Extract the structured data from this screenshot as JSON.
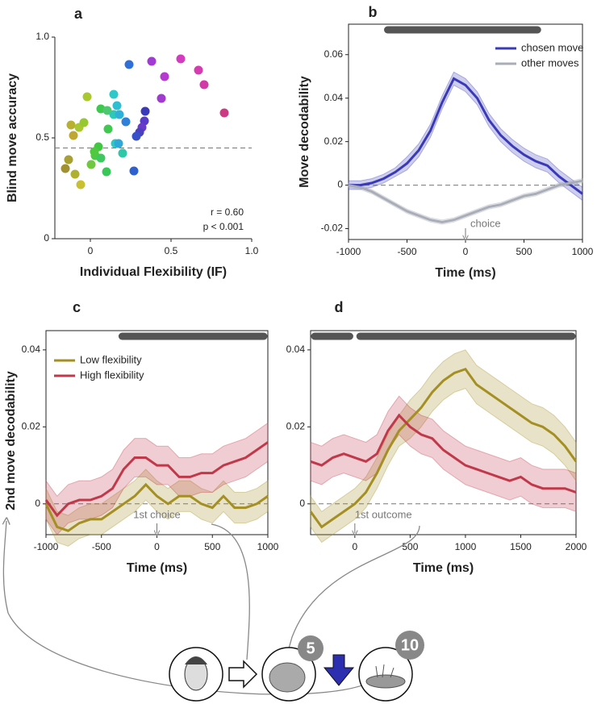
{
  "chart_data": [
    {
      "type": "scatter",
      "panel": "a",
      "x_label": "Individual Flexibility (IF)",
      "y_label": "Blind move accuracy",
      "xlim": [
        -0.22,
        1.0
      ],
      "ylim": [
        0,
        1.0
      ],
      "xticks": [
        0,
        0.5,
        {
          "value": 1.0,
          "label": "1.0"
        }
      ],
      "yticks": [
        0,
        0.5,
        {
          "value": 1.0,
          "label": "1.0"
        }
      ],
      "reference_line": 0.45,
      "annotations": [
        "r = 0.60",
        "p < 0.001"
      ],
      "x": [
        0.24,
        0.38,
        0.56,
        0.67,
        0.46,
        0.705,
        0.44,
        0.83,
        -0.02,
        0.145,
        0.065,
        0.105,
        0.165,
        0.145,
        0.18,
        0.22,
        0.34,
        0.335,
        0.32,
        0.305,
        0.285,
        -0.12,
        -0.07,
        -0.04,
        -0.105,
        0.11,
        0.155,
        0.175,
        0.05,
        0.025,
        0.03,
        0.065,
        0.005,
        -0.135,
        -0.155,
        -0.095,
        -0.06,
        0.1,
        0.27,
        0.2
      ],
      "values": [
        0.864,
        0.88,
        0.892,
        0.836,
        0.804,
        0.764,
        0.696,
        0.624,
        0.704,
        0.716,
        0.644,
        0.636,
        0.66,
        0.616,
        0.616,
        0.58,
        0.632,
        0.584,
        0.552,
        0.528,
        0.508,
        0.564,
        0.552,
        0.576,
        0.512,
        0.544,
        0.472,
        0.472,
        0.456,
        0.432,
        0.412,
        0.4,
        0.368,
        0.392,
        0.348,
        0.32,
        0.268,
        0.332,
        0.336,
        0.424
      ],
      "colors": [
        "#2e6fd8",
        "#a43ad6",
        "#d43cc0",
        "#d43cb0",
        "#b43ad0",
        "#d23aa6",
        "#a03ad0",
        "#cc3a86",
        "#a8c82e",
        "#2ec8c8",
        "#3ec84e",
        "#4ec86e",
        "#2ec0d0",
        "#2ec8b8",
        "#2eb0d8",
        "#2e80d8",
        "#3a3ab8",
        "#5a3ac8",
        "#6a3ac8",
        "#4a40c0",
        "#3a50c8",
        "#b8b030",
        "#a8c830",
        "#98c830",
        "#c0a830",
        "#40c850",
        "#2ec8c0",
        "#2ea8d8",
        "#40c840",
        "#50c840",
        "#50c840",
        "#40c860",
        "#70c840",
        "#a8a030",
        "#a09030",
        "#b0b030",
        "#c8c030",
        "#38c858",
        "#2e60d0",
        "#2ec8a8"
      ]
    },
    {
      "type": "line",
      "panel": "b",
      "x_label": "Time (ms)",
      "y_label": "Move decodability",
      "xlim": [
        -1000,
        1000
      ],
      "ylim": [
        -0.025,
        0.074
      ],
      "xticks": [
        -1000,
        -500,
        0,
        500,
        1000
      ],
      "yticks": [
        -0.02,
        0,
        0.02,
        0.04,
        0.06
      ],
      "reference_line": 0,
      "significance": [
        [
          -700,
          650
        ]
      ],
      "legend": "upper right",
      "annotation": {
        "text": "choice",
        "x": 0
      },
      "x": [
        -1000,
        -900,
        -800,
        -700,
        -600,
        -500,
        -400,
        -300,
        -200,
        -100,
        0,
        100,
        200,
        300,
        400,
        500,
        600,
        700,
        800,
        900,
        1000
      ],
      "series": [
        {
          "name": "chosen move",
          "color": "#3a3ab8",
          "values": [
            0,
            0,
            0.001,
            0.003,
            0.006,
            0.01,
            0.016,
            0.025,
            0.038,
            0.049,
            0.046,
            0.04,
            0.03,
            0.023,
            0.018,
            0.014,
            0.011,
            0.009,
            0.004,
            0,
            -0.004
          ],
          "error": [
            0.002,
            0.002,
            0.002,
            0.002,
            0.002,
            0.003,
            0.003,
            0.003,
            0.003,
            0.003,
            0.003,
            0.003,
            0.003,
            0.003,
            0.003,
            0.003,
            0.003,
            0.003,
            0.003,
            0.003,
            0.003
          ]
        },
        {
          "name": "other moves",
          "color": "#a9adb8",
          "values": [
            0,
            -0.001,
            -0.003,
            -0.006,
            -0.009,
            -0.012,
            -0.014,
            -0.016,
            -0.017,
            -0.016,
            -0.014,
            -0.012,
            -0.01,
            -0.009,
            -0.007,
            -0.005,
            -0.004,
            -0.002,
            0,
            0.001,
            0.002
          ],
          "error": [
            0.001,
            0.001,
            0.001,
            0.001,
            0.001,
            0.001,
            0.001,
            0.001,
            0.001,
            0.001,
            0.001,
            0.001,
            0.001,
            0.001,
            0.001,
            0.001,
            0.001,
            0.001,
            0.001,
            0.001,
            0.001
          ]
        }
      ]
    },
    {
      "type": "line",
      "panel": "c",
      "x_label": "Time (ms)",
      "y_label": "2nd move decodability",
      "xlim": [
        -1000,
        1000
      ],
      "ylim": [
        -0.008,
        0.045
      ],
      "xticks": [
        -1000,
        -500,
        0,
        500,
        1000
      ],
      "yticks": [
        0,
        0.02,
        0.04
      ],
      "reference_line": 0,
      "significance": [
        [
          -350,
          1000
        ]
      ],
      "legend": "upper left",
      "annotation": {
        "text": "1st choice",
        "x": 0
      },
      "x": [
        -1000,
        -900,
        -800,
        -700,
        -600,
        -500,
        -400,
        -300,
        -200,
        -100,
        0,
        100,
        200,
        300,
        400,
        500,
        600,
        700,
        800,
        900,
        1000
      ],
      "series": [
        {
          "name": "Low flexibility",
          "color": "#a48f22",
          "values": [
            0,
            -0.006,
            -0.007,
            -0.005,
            -0.004,
            -0.004,
            -0.002,
            0,
            0.002,
            0.005,
            0.002,
            0,
            0.002,
            0.002,
            0,
            -0.001,
            0.002,
            -0.001,
            -0.001,
            0,
            0.002
          ],
          "error": [
            0.004,
            0.004,
            0.004,
            0.004,
            0.004,
            0.004,
            0.004,
            0.004,
            0.004,
            0.004,
            0.004,
            0.004,
            0.004,
            0.004,
            0.004,
            0.004,
            0.004,
            0.004,
            0.004,
            0.004,
            0.004
          ]
        },
        {
          "name": "High flexibility",
          "color": "#c0394a",
          "values": [
            0.001,
            -0.003,
            0,
            0.001,
            0.001,
            0.002,
            0.004,
            0.009,
            0.012,
            0.012,
            0.01,
            0.01,
            0.007,
            0.007,
            0.008,
            0.008,
            0.01,
            0.011,
            0.012,
            0.014,
            0.016
          ],
          "error": [
            0.005,
            0.005,
            0.005,
            0.005,
            0.005,
            0.005,
            0.005,
            0.005,
            0.005,
            0.005,
            0.005,
            0.005,
            0.005,
            0.005,
            0.005,
            0.005,
            0.005,
            0.005,
            0.005,
            0.005,
            0.005
          ]
        }
      ]
    },
    {
      "type": "line",
      "panel": "d",
      "x_label": "Time (ms)",
      "xlim": [
        -400,
        2000
      ],
      "ylim": [
        -0.008,
        0.045
      ],
      "xticks": [
        0,
        500,
        1000,
        1500,
        2000
      ],
      "yticks": [
        0,
        0.02,
        0.04
      ],
      "reference_line": 0,
      "significance": [
        [
          -400,
          -10
        ],
        [
          10,
          2000
        ]
      ],
      "annotation": {
        "text": "1st outcome",
        "x": 0
      },
      "x": [
        -400,
        -300,
        -200,
        -100,
        0,
        100,
        200,
        300,
        400,
        500,
        600,
        700,
        800,
        900,
        1000,
        1100,
        1200,
        1300,
        1400,
        1500,
        1600,
        1700,
        1800,
        1900,
        2000
      ],
      "series": [
        {
          "name": "Low flexibility",
          "color": "#a48f22",
          "values": [
            -0.002,
            -0.006,
            -0.004,
            -0.002,
            0,
            0.003,
            0.008,
            0.014,
            0.019,
            0.022,
            0.025,
            0.029,
            0.032,
            0.034,
            0.035,
            0.031,
            0.029,
            0.027,
            0.025,
            0.023,
            0.021,
            0.02,
            0.018,
            0.015,
            0.011
          ],
          "error": [
            0.004,
            0.004,
            0.004,
            0.004,
            0.004,
            0.004,
            0.004,
            0.004,
            0.004,
            0.005,
            0.005,
            0.005,
            0.005,
            0.005,
            0.005,
            0.005,
            0.005,
            0.005,
            0.005,
            0.005,
            0.005,
            0.005,
            0.005,
            0.005,
            0.005
          ]
        },
        {
          "name": "High flexibility",
          "color": "#c0394a",
          "values": [
            0.011,
            0.01,
            0.012,
            0.013,
            0.012,
            0.011,
            0.013,
            0.019,
            0.023,
            0.02,
            0.018,
            0.017,
            0.014,
            0.012,
            0.01,
            0.009,
            0.008,
            0.007,
            0.006,
            0.007,
            0.005,
            0.004,
            0.004,
            0.004,
            0.003
          ],
          "error": [
            0.005,
            0.005,
            0.005,
            0.005,
            0.005,
            0.005,
            0.005,
            0.005,
            0.005,
            0.005,
            0.005,
            0.005,
            0.005,
            0.005,
            0.005,
            0.005,
            0.005,
            0.005,
            0.005,
            0.005,
            0.005,
            0.005,
            0.005,
            0.005,
            0.005
          ]
        }
      ]
    }
  ],
  "illustration": {
    "badges": [
      "5",
      "10"
    ]
  }
}
